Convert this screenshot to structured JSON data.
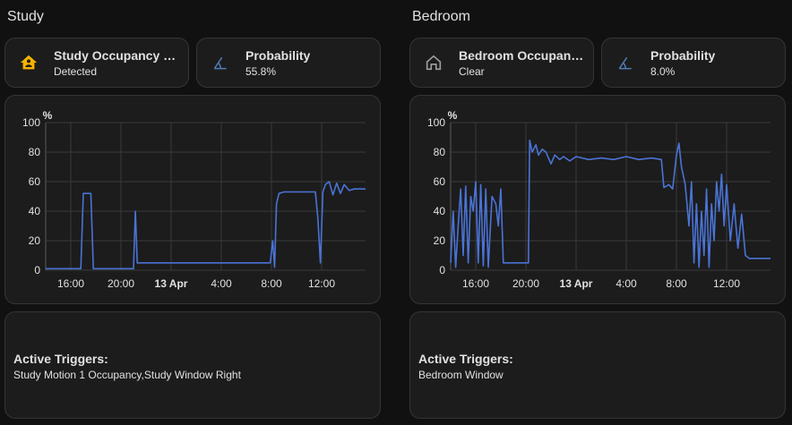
{
  "colors": {
    "background": "#111111",
    "card": "#1c1c1c",
    "line": "#4a73d6",
    "active_icon": "#f5b400",
    "icon": "#9e9e9e",
    "probability_icon": "#4f7bb5"
  },
  "study": {
    "title": "Study",
    "occupancy": {
      "name": "Study Occupancy St...",
      "state": "Detected",
      "icon": "home-account-icon"
    },
    "probability": {
      "name": "Probability",
      "state": "55.8%",
      "icon": "angle-acute-icon"
    },
    "triggers": {
      "label": "Active Triggers:",
      "value": "Study Motion 1 Occupancy,Study Window Right"
    }
  },
  "bedroom": {
    "title": "Bedroom",
    "occupancy": {
      "name": "Bedroom Occupanc...",
      "state": "Clear",
      "icon": "home-outline-icon"
    },
    "probability": {
      "name": "Probability",
      "state": "8.0%",
      "icon": "angle-acute-icon"
    },
    "triggers": {
      "label": "Active Triggers:",
      "value": "Bedroom Window"
    }
  },
  "chart_data": [
    {
      "type": "line",
      "ylabel": "%",
      "ylim": [
        0,
        100
      ],
      "yticks": [
        0,
        20,
        40,
        60,
        80,
        100
      ],
      "xlim": [
        14,
        39.5
      ],
      "xticks": [
        {
          "h": 16,
          "label": "16:00"
        },
        {
          "h": 20,
          "label": "20:00"
        },
        {
          "h": 24,
          "label": "13 Apr"
        },
        {
          "h": 28,
          "label": "4:00"
        },
        {
          "h": 32,
          "label": "8:00"
        },
        {
          "h": 36,
          "label": "12:00"
        }
      ],
      "grid": true,
      "points": [
        [
          14,
          1
        ],
        [
          16.8,
          1
        ],
        [
          17,
          52
        ],
        [
          17.6,
          52
        ],
        [
          17.8,
          1
        ],
        [
          21,
          1
        ],
        [
          21.15,
          40
        ],
        [
          21.3,
          5
        ],
        [
          22,
          5
        ],
        [
          31.5,
          5
        ],
        [
          31.9,
          5
        ],
        [
          32.1,
          20
        ],
        [
          32.25,
          2
        ],
        [
          32.4,
          45
        ],
        [
          32.6,
          52
        ],
        [
          33,
          53
        ],
        [
          35.5,
          53
        ],
        [
          35.7,
          35
        ],
        [
          35.9,
          5
        ],
        [
          36.1,
          53
        ],
        [
          36.3,
          58
        ],
        [
          36.6,
          60
        ],
        [
          36.9,
          51
        ],
        [
          37.2,
          59
        ],
        [
          37.5,
          52
        ],
        [
          37.8,
          58
        ],
        [
          38.2,
          54
        ],
        [
          38.6,
          55
        ],
        [
          39.5,
          55
        ]
      ]
    },
    {
      "type": "line",
      "ylabel": "%",
      "ylim": [
        0,
        100
      ],
      "yticks": [
        0,
        20,
        40,
        60,
        80,
        100
      ],
      "xlim": [
        14,
        39.5
      ],
      "xticks": [
        {
          "h": 16,
          "label": "16:00"
        },
        {
          "h": 20,
          "label": "20:00"
        },
        {
          "h": 24,
          "label": "13 Apr"
        },
        {
          "h": 28,
          "label": "4:00"
        },
        {
          "h": 32,
          "label": "8:00"
        },
        {
          "h": 36,
          "label": "12:00"
        }
      ],
      "grid": true,
      "points": [
        [
          14,
          5
        ],
        [
          14.2,
          40
        ],
        [
          14.4,
          2
        ],
        [
          14.6,
          30
        ],
        [
          14.8,
          55
        ],
        [
          15,
          10
        ],
        [
          15.2,
          57
        ],
        [
          15.4,
          5
        ],
        [
          15.6,
          50
        ],
        [
          15.8,
          40
        ],
        [
          16,
          60
        ],
        [
          16.2,
          5
        ],
        [
          16.4,
          58
        ],
        [
          16.6,
          3
        ],
        [
          16.8,
          55
        ],
        [
          17,
          2
        ],
        [
          17.3,
          50
        ],
        [
          17.6,
          45
        ],
        [
          17.8,
          30
        ],
        [
          18,
          55
        ],
        [
          18.2,
          5
        ],
        [
          18.5,
          5
        ],
        [
          20,
          5
        ],
        [
          20.2,
          5
        ],
        [
          20.3,
          88
        ],
        [
          20.5,
          80
        ],
        [
          20.8,
          85
        ],
        [
          21,
          78
        ],
        [
          21.3,
          82
        ],
        [
          21.6,
          80
        ],
        [
          22,
          72
        ],
        [
          22.3,
          78
        ],
        [
          22.7,
          75
        ],
        [
          23,
          77
        ],
        [
          23.5,
          74
        ],
        [
          24,
          77
        ],
        [
          25,
          75
        ],
        [
          26,
          76
        ],
        [
          27,
          75
        ],
        [
          28,
          77
        ],
        [
          29,
          75
        ],
        [
          30,
          76
        ],
        [
          30.8,
          75
        ],
        [
          31,
          56
        ],
        [
          31.4,
          58
        ],
        [
          31.7,
          55
        ],
        [
          32,
          78
        ],
        [
          32.2,
          86
        ],
        [
          32.4,
          70
        ],
        [
          32.7,
          58
        ],
        [
          33,
          30
        ],
        [
          33.2,
          60
        ],
        [
          33.4,
          5
        ],
        [
          33.6,
          45
        ],
        [
          33.8,
          2
        ],
        [
          34,
          40
        ],
        [
          34.2,
          10
        ],
        [
          34.4,
          55
        ],
        [
          34.6,
          2
        ],
        [
          34.8,
          45
        ],
        [
          35,
          20
        ],
        [
          35.2,
          60
        ],
        [
          35.4,
          40
        ],
        [
          35.6,
          65
        ],
        [
          35.8,
          30
        ],
        [
          36,
          58
        ],
        [
          36.3,
          20
        ],
        [
          36.6,
          45
        ],
        [
          36.9,
          15
        ],
        [
          37.2,
          38
        ],
        [
          37.5,
          10
        ],
        [
          37.8,
          8
        ],
        [
          38.2,
          8
        ],
        [
          39.5,
          8
        ]
      ]
    }
  ]
}
